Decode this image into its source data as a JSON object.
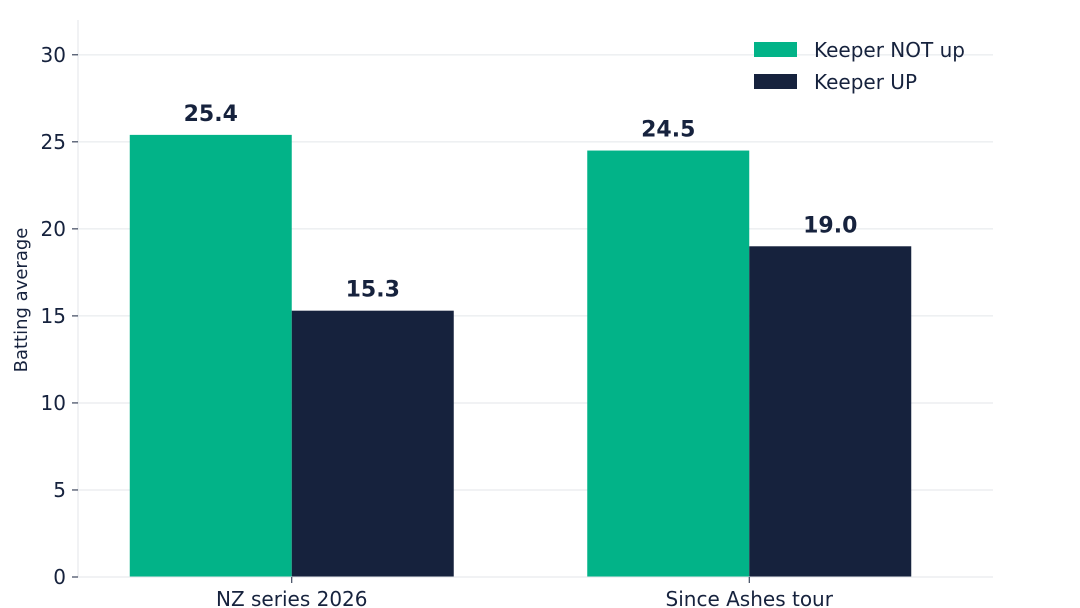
{
  "chart_data": {
    "type": "bar",
    "title": "",
    "xlabel": "",
    "ylabel": "Batting average",
    "categories": [
      "NZ series 2026",
      "Since Ashes tour"
    ],
    "series": [
      {
        "name": "Keeper NOT up",
        "color": "#02b388",
        "values": [
          25.4,
          24.5
        ],
        "labels": [
          "25.4",
          "24.5"
        ]
      },
      {
        "name": "Keeper UP",
        "color": "#16223d",
        "values": [
          15.3,
          19.0
        ],
        "labels": [
          "15.3",
          "19.0"
        ]
      }
    ],
    "ylim": [
      0,
      32
    ],
    "yticks": [
      0,
      5,
      10,
      15,
      20,
      25,
      30
    ],
    "grid": true,
    "legend_position": "top-right"
  }
}
